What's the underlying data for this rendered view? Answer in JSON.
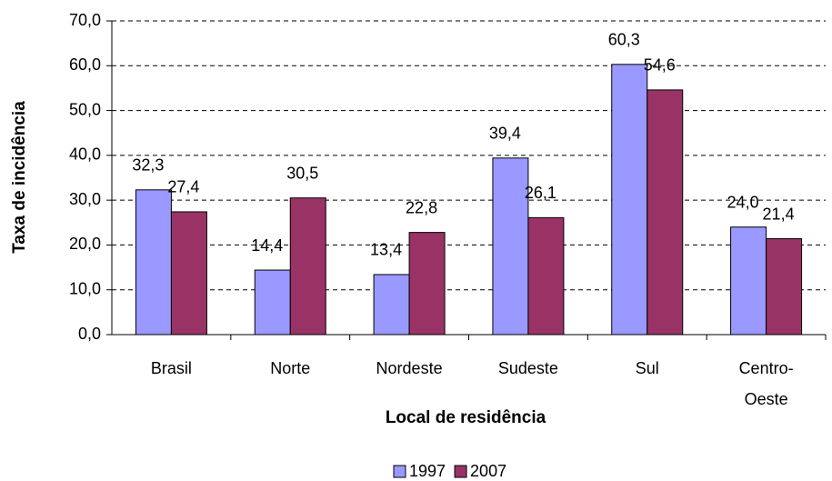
{
  "chart_data": {
    "type": "bar",
    "x_label": "Local de residência",
    "y_label": "Taxa de incidência",
    "categories": [
      "Brasil",
      "Norte",
      "Nordeste",
      "Sudeste",
      "Sul",
      "Centro-Oeste"
    ],
    "series": [
      {
        "name": "1997",
        "color": "#9999ff",
        "values": [
          32.3,
          14.4,
          13.4,
          39.4,
          60.3,
          24.0
        ],
        "value_labels": [
          "32,3",
          "14,4",
          "13,4",
          "39,4",
          "60,3",
          "24,0"
        ]
      },
      {
        "name": "2007",
        "color": "#993366",
        "values": [
          27.4,
          30.5,
          22.8,
          26.1,
          54.6,
          21.4
        ],
        "value_labels": [
          "27,4",
          "30,5",
          "22,8",
          "26,1",
          "54,6",
          "21,4"
        ]
      }
    ],
    "ylim": [
      0,
      70
    ],
    "yticks": [
      {
        "value": 0,
        "label": "0,0"
      },
      {
        "value": 10,
        "label": "10,0"
      },
      {
        "value": 20,
        "label": "20,0"
      },
      {
        "value": 30,
        "label": "30,0"
      },
      {
        "value": 40,
        "label": "40,0"
      },
      {
        "value": 50,
        "label": "50,0"
      },
      {
        "value": 60,
        "label": "60,0"
      },
      {
        "value": 70,
        "label": "70,0"
      }
    ],
    "grid": true,
    "legend": "bottom"
  }
}
